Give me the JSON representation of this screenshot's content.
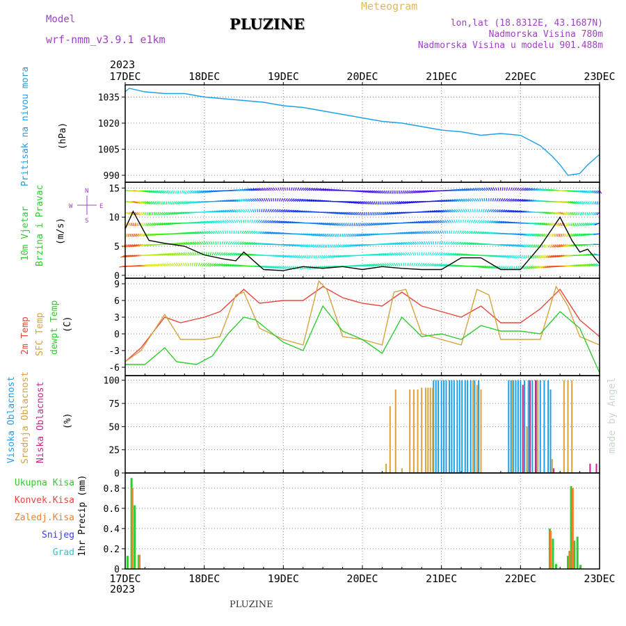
{
  "header": {
    "model_label": "Model",
    "model_name": "wrf-nmm_v3.9.1 e1km",
    "station": "PLUZINE",
    "product": "Meteogram",
    "lonlat": "lon,lat (18.8312E, 43.1687N)",
    "elevation": "Nadmorska Visina 780m",
    "model_elevation": "Nadmorska Visina u modelu 901.488m"
  },
  "time_axis": {
    "year": "2023",
    "labels": [
      "17DEC",
      "18DEC",
      "19DEC",
      "20DEC",
      "21DEC",
      "22DEC",
      "23DEC"
    ]
  },
  "footer": {
    "station": "PLUZINE"
  },
  "watermark": "made by Angel",
  "colors": {
    "pressure": "#1ea0e8",
    "temp": "#e8463c",
    "sfc": "#d8a23c",
    "dewpt": "#2ecc2e",
    "high_cloud": "#1ea0e8",
    "mid_cloud": "#d8a23c",
    "low_cloud": "#d0208c",
    "total": "#2ecc2e",
    "convective": "#e8463c",
    "frozen": "#f08030",
    "snow": "#3c3cf0",
    "hail": "#28c8c8"
  },
  "chart_data": [
    {
      "type": "line",
      "title": "Pritisak na nivou mora",
      "ylabel": "(hPa)",
      "yticks": [
        1035,
        1020,
        1005,
        990
      ],
      "ylim": [
        986,
        1042
      ],
      "x_unit": "days since 17DEC 00Z",
      "series": [
        {
          "name": "Pritisak na nivou mora",
          "color": "#1ea0e8",
          "x": [
            0,
            0.05,
            0.25,
            0.5,
            0.75,
            1.0,
            1.25,
            1.5,
            1.75,
            2.0,
            2.25,
            2.5,
            2.75,
            3.0,
            3.25,
            3.5,
            3.75,
            4.0,
            4.25,
            4.5,
            4.75,
            5.0,
            5.25,
            5.4,
            5.5,
            5.6,
            5.75,
            5.85,
            6.0
          ],
          "y": [
            1038,
            1040,
            1038,
            1037,
            1037,
            1035,
            1034,
            1033,
            1032,
            1030,
            1029,
            1027,
            1025,
            1023,
            1021,
            1020,
            1018,
            1016,
            1015,
            1013,
            1014,
            1013,
            1007,
            1001,
            996,
            990,
            991,
            996,
            1002
          ]
        }
      ]
    },
    {
      "type": "line",
      "title": "10m Vjetar Brzina i Pravac",
      "ylabel": "(m/s)",
      "yticks": [
        0,
        5,
        10,
        15
      ],
      "ylim": [
        -0.5,
        16
      ],
      "series": [
        {
          "name": "10m Vjetar",
          "color": "#000000",
          "x": [
            0,
            0.1,
            0.3,
            0.5,
            0.75,
            1.0,
            1.25,
            1.4,
            1.5,
            1.75,
            2.0,
            2.25,
            2.5,
            2.75,
            3.0,
            3.25,
            3.5,
            3.75,
            4.0,
            4.25,
            4.5,
            4.75,
            5.0,
            5.25,
            5.5,
            5.65,
            5.75,
            5.85,
            6.0
          ],
          "y": [
            8,
            11,
            6,
            5.5,
            5,
            3.5,
            2.8,
            2.5,
            4,
            1,
            0.8,
            1.5,
            1.2,
            1.5,
            1,
            1.5,
            1.2,
            1,
            1,
            3,
            3,
            1,
            1,
            5,
            10,
            6,
            4,
            4.5,
            2
          ]
        }
      ]
    },
    {
      "type": "line",
      "title": "2m Temp / SFC Temp / dewpt Temp",
      "ylabel": "(C)",
      "yticks": [
        9,
        6,
        3,
        0,
        -3,
        -6
      ],
      "ylim": [
        -7.5,
        10
      ],
      "series": [
        {
          "name": "2m Temp",
          "color": "#e8463c",
          "x": [
            0,
            0.2,
            0.5,
            0.7,
            1.0,
            1.2,
            1.5,
            1.7,
            2.0,
            2.25,
            2.5,
            2.75,
            3.0,
            3.25,
            3.5,
            3.75,
            4.0,
            4.25,
            4.5,
            4.75,
            5.0,
            5.25,
            5.5,
            5.75,
            6.0
          ],
          "y": [
            -5,
            -2.5,
            3,
            2,
            3,
            4,
            8,
            5.5,
            6,
            6,
            8.5,
            6.5,
            5.5,
            5,
            7.5,
            5,
            4,
            3,
            5,
            2,
            2,
            4.5,
            8,
            2.5,
            -0.5
          ]
        },
        {
          "name": "SFC Temp",
          "color": "#d8a23c",
          "x": [
            0,
            0.2,
            0.5,
            0.7,
            1.0,
            1.2,
            1.4,
            1.5,
            1.7,
            2.0,
            2.25,
            2.45,
            2.55,
            2.75,
            3.0,
            3.25,
            3.4,
            3.55,
            3.75,
            4.0,
            4.25,
            4.45,
            4.6,
            4.75,
            5.0,
            5.25,
            5.45,
            5.6,
            5.75,
            6.0
          ],
          "y": [
            -5,
            -3,
            3.5,
            -1,
            -1,
            -0.5,
            7,
            7.5,
            1,
            -1,
            -2,
            9.5,
            8,
            -0.5,
            -1,
            -2,
            7.5,
            8,
            0,
            -1,
            -2,
            8,
            7,
            -1,
            -1,
            -1,
            8.5,
            5,
            -0.5,
            -2
          ]
        },
        {
          "name": "dewpt Temp",
          "color": "#2ecc2e",
          "x": [
            0,
            0.25,
            0.5,
            0.65,
            0.9,
            1.1,
            1.3,
            1.5,
            1.65,
            2.0,
            2.25,
            2.5,
            2.75,
            3.0,
            3.25,
            3.5,
            3.75,
            4.0,
            4.25,
            4.5,
            4.75,
            5.0,
            5.25,
            5.5,
            5.75,
            6.0
          ],
          "y": [
            -5.5,
            -5.5,
            -2.5,
            -5,
            -5.5,
            -4,
            0,
            3,
            2.5,
            -1.5,
            -3,
            5,
            0.5,
            -1,
            -3.5,
            3,
            -0.5,
            0,
            -1,
            1.5,
            0.5,
            0.5,
            0,
            4,
            1,
            -7
          ]
        }
      ]
    },
    {
      "type": "bar",
      "title": "Visoka / Srednja / Niska Oblacnost",
      "ylabel": "(%)",
      "yticks": [
        100,
        75,
        50,
        25,
        0
      ],
      "ylim": [
        0,
        105
      ],
      "series": [
        {
          "name": "Visoka Oblacnost",
          "color": "#1ea0e8",
          "x": [
            3.9,
            3.93,
            3.96,
            4.0,
            4.03,
            4.06,
            4.1,
            4.13,
            4.16,
            4.2,
            4.23,
            4.26,
            4.3,
            4.33,
            4.37,
            4.42,
            4.47,
            4.85,
            4.88,
            4.91,
            4.94,
            4.97,
            5.0,
            5.05,
            5.1,
            5.15,
            5.2,
            5.25,
            5.3,
            5.35,
            5.38
          ],
          "values": [
            100,
            100,
            100,
            100,
            100,
            100,
            100,
            100,
            100,
            100,
            100,
            100,
            100,
            100,
            100,
            100,
            100,
            100,
            100,
            100,
            100,
            100,
            100,
            100,
            100,
            100,
            100,
            100,
            100,
            100,
            90
          ]
        },
        {
          "name": "Srednja Oblacnost",
          "color": "#d8a23c",
          "x": [
            3.3,
            3.35,
            3.42,
            3.5,
            3.6,
            3.65,
            3.7,
            3.75,
            3.8,
            3.83,
            3.86,
            3.89,
            4.4,
            4.45,
            4.5,
            4.9,
            5.08,
            5.22,
            5.4,
            5.55,
            5.6,
            5.65
          ],
          "values": [
            10,
            72,
            90,
            5,
            90,
            90,
            90,
            92,
            92,
            92,
            92,
            92,
            100,
            95,
            90,
            100,
            50,
            100,
            15,
            100,
            100,
            100
          ]
        },
        {
          "name": "Niska Oblacnost",
          "color": "#d0208c",
          "x": [
            5.03,
            5.12,
            5.19,
            5.42,
            5.88,
            5.96
          ],
          "values": [
            95,
            100,
            100,
            5,
            10,
            10
          ]
        }
      ]
    },
    {
      "type": "bar",
      "title": "1hr Precip",
      "ylabel": "1hr Precip (mm)",
      "yticks": [
        0.8,
        0.6,
        0.4,
        0.2,
        0
      ],
      "ylim": [
        0,
        0.95
      ],
      "legend": [
        "Ukupna Kisa",
        "Konvek.Kisa",
        "Zaledj.Kisa",
        "Snijeg",
        "Grad"
      ],
      "series": [
        {
          "name": "Ukupna Kisa",
          "color": "#2ecc2e",
          "x": [
            0.03,
            0.08,
            0.12,
            0.17,
            5.37,
            5.41,
            5.45,
            5.6,
            5.64,
            5.68,
            5.72,
            5.76
          ],
          "values": [
            0.13,
            0.9,
            0.63,
            0.14,
            0.4,
            0.3,
            0.05,
            0.13,
            0.82,
            0.28,
            0.32,
            0.04
          ]
        },
        {
          "name": "Zaledj.Kisa",
          "color": "#f08030",
          "x": [
            0.09,
            0.18,
            5.38,
            5.62,
            5.66
          ],
          "values": [
            0.8,
            0.14,
            0.38,
            0.18,
            0.8
          ]
        }
      ]
    }
  ]
}
